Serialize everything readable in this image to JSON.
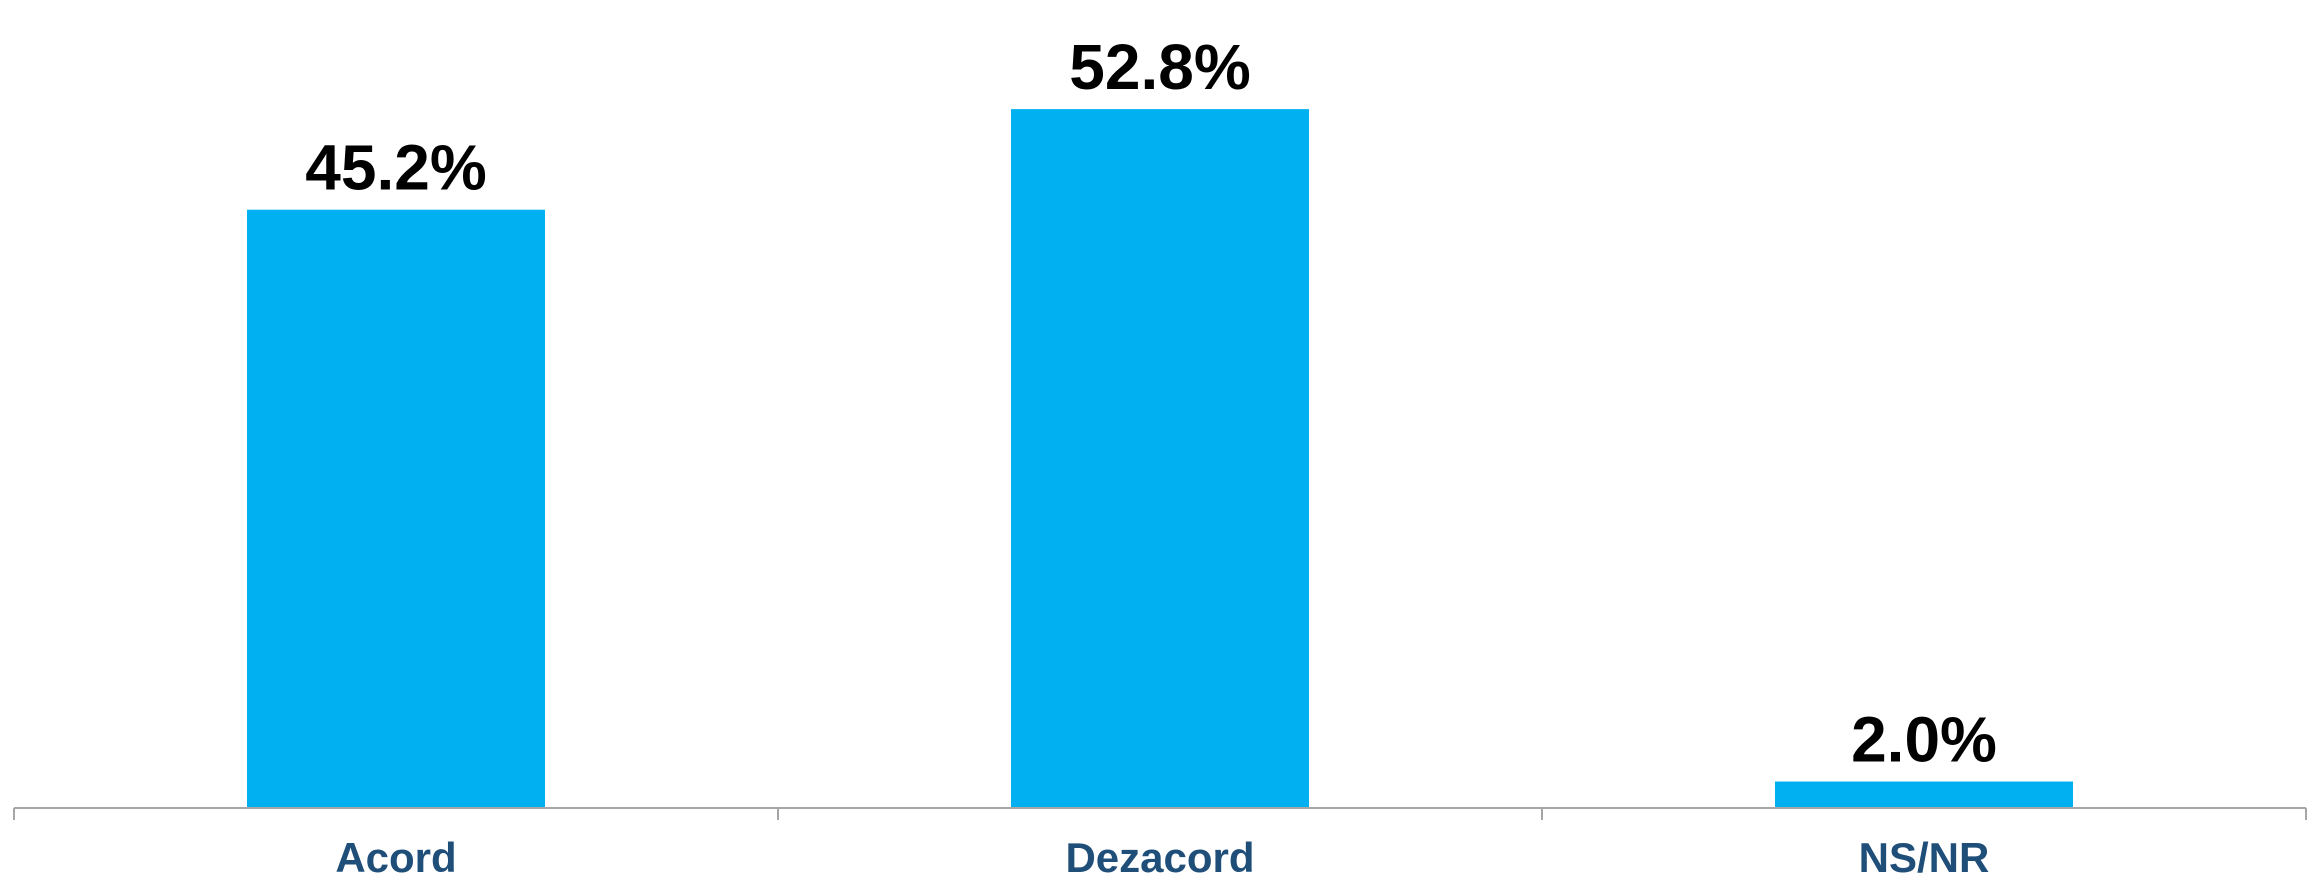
{
  "chart_data": {
    "type": "bar",
    "categories": [
      "Acord",
      "Dezacord",
      "NS/NR"
    ],
    "values": [
      45.2,
      52.8,
      2.0
    ],
    "data_labels": [
      "45.2%",
      "52.8%",
      "2.0%"
    ],
    "ylim": [
      0,
      55
    ],
    "grid": false,
    "colors": {
      "bar": "#00b0f0",
      "data_label": "#000000",
      "category_label": "#1f4e79",
      "axis": "#a6a6a6"
    }
  }
}
